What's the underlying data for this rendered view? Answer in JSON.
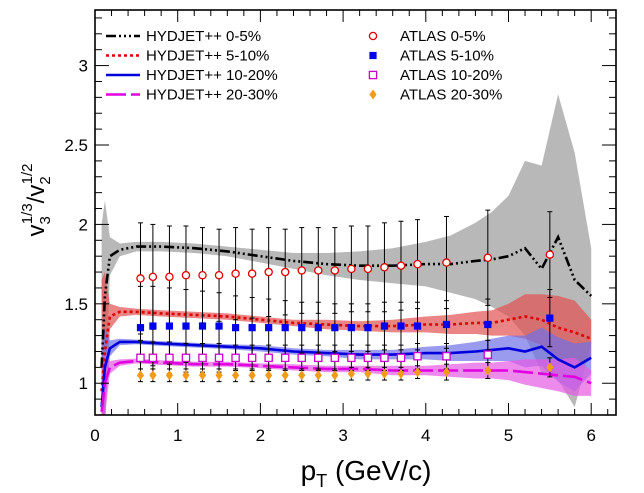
{
  "chart_data": {
    "type": "line",
    "title": "",
    "xlabel": {
      "main": "p",
      "sub": "T",
      "rest": " (GeV/c)"
    },
    "ylabel": {
      "a": "v",
      "a_sub": "3",
      "a_sup": "1/3",
      "slash": "/v",
      "b_sub": "2",
      "b_sup": "1/2"
    },
    "xlim": [
      0,
      6.3
    ],
    "ylim": [
      0.8,
      3.35
    ],
    "x_ticks": [
      "0",
      "1",
      "2",
      "3",
      "4",
      "5",
      "6"
    ],
    "y_ticks": [
      "1",
      "1.5",
      "2",
      "2.5",
      "3"
    ],
    "legend_position": "top",
    "grid": false,
    "model_series": [
      {
        "name": "HYDJET++ 0-5%",
        "color": "#000000",
        "dash": "10 3 2 3 2 3 2 3",
        "band_color": "#9a9a9a",
        "x": [
          0.08,
          0.12,
          0.18,
          0.3,
          0.5,
          0.8,
          1.2,
          1.6,
          2.0,
          2.4,
          2.8,
          3.2,
          3.6,
          4.0,
          4.3,
          4.6,
          4.8,
          5.0,
          5.2,
          5.4,
          5.6,
          5.8,
          6.0
        ],
        "y": [
          1.1,
          1.55,
          1.8,
          1.84,
          1.86,
          1.86,
          1.85,
          1.83,
          1.8,
          1.77,
          1.75,
          1.74,
          1.74,
          1.75,
          1.75,
          1.77,
          1.78,
          1.8,
          1.85,
          1.72,
          1.92,
          1.65,
          1.55
        ],
        "err": [
          0.9,
          0.6,
          0.12,
          0.04,
          0.03,
          0.03,
          0.03,
          0.03,
          0.04,
          0.05,
          0.07,
          0.09,
          0.11,
          0.14,
          0.18,
          0.24,
          0.3,
          0.38,
          0.55,
          0.65,
          0.9,
          0.8,
          0.3
        ]
      },
      {
        "name": "HYDJET++ 5-10%",
        "color": "#e00000",
        "dash": "3 3",
        "band_color": "#e35050",
        "x": [
          0.08,
          0.12,
          0.18,
          0.3,
          0.5,
          0.8,
          1.2,
          1.6,
          2.0,
          2.4,
          2.8,
          3.2,
          3.6,
          4.0,
          4.3,
          4.6,
          4.8,
          5.0,
          5.2,
          5.4,
          5.6,
          5.8,
          6.0
        ],
        "y": [
          0.95,
          1.2,
          1.42,
          1.45,
          1.45,
          1.44,
          1.43,
          1.42,
          1.4,
          1.38,
          1.37,
          1.36,
          1.36,
          1.37,
          1.37,
          1.38,
          1.38,
          1.4,
          1.42,
          1.4,
          1.35,
          1.32,
          1.28
        ],
        "err": [
          0.7,
          0.5,
          0.08,
          0.03,
          0.02,
          0.02,
          0.02,
          0.02,
          0.02,
          0.02,
          0.03,
          0.03,
          0.04,
          0.05,
          0.06,
          0.07,
          0.08,
          0.1,
          0.14,
          0.16,
          0.2,
          0.2,
          0.12
        ]
      },
      {
        "name": "HYDJET++ 10-20%",
        "color": "#0000dd",
        "dash": "",
        "band_color": "#6f6fe8",
        "x": [
          0.08,
          0.12,
          0.18,
          0.3,
          0.5,
          0.8,
          1.2,
          1.6,
          2.0,
          2.4,
          2.8,
          3.2,
          3.6,
          4.0,
          4.3,
          4.6,
          4.8,
          5.0,
          5.2,
          5.4,
          5.6,
          5.8,
          6.0
        ],
        "y": [
          0.85,
          1.1,
          1.22,
          1.26,
          1.26,
          1.25,
          1.24,
          1.23,
          1.22,
          1.2,
          1.19,
          1.18,
          1.18,
          1.19,
          1.19,
          1.2,
          1.21,
          1.22,
          1.2,
          1.23,
          1.15,
          1.1,
          1.16
        ],
        "err": [
          0.4,
          0.25,
          0.05,
          0.02,
          0.015,
          0.015,
          0.015,
          0.015,
          0.02,
          0.02,
          0.02,
          0.03,
          0.03,
          0.04,
          0.05,
          0.06,
          0.07,
          0.08,
          0.1,
          0.12,
          0.14,
          0.15,
          0.1
        ]
      },
      {
        "name": "HYDJET++ 20-30%",
        "color": "#e000e0",
        "dash": "20 5",
        "band_color": "#e55ae5",
        "x": [
          0.08,
          0.12,
          0.18,
          0.3,
          0.5,
          0.8,
          1.2,
          1.6,
          2.0,
          2.4,
          2.8,
          3.2,
          3.6,
          4.0,
          4.3,
          4.6,
          4.8,
          5.0,
          5.2,
          5.4,
          5.6,
          5.8,
          6.0
        ],
        "y": [
          0.82,
          1.0,
          1.1,
          1.13,
          1.14,
          1.13,
          1.12,
          1.12,
          1.11,
          1.1,
          1.09,
          1.09,
          1.08,
          1.08,
          1.08,
          1.08,
          1.08,
          1.08,
          1.07,
          1.06,
          1.05,
          1.04,
          1.0
        ],
        "err": [
          0.3,
          0.2,
          0.04,
          0.02,
          0.015,
          0.015,
          0.015,
          0.015,
          0.015,
          0.02,
          0.02,
          0.02,
          0.03,
          0.03,
          0.04,
          0.05,
          0.05,
          0.06,
          0.08,
          0.09,
          0.1,
          0.12,
          0.08
        ]
      }
    ],
    "data_series": [
      {
        "name": "ATLAS 0-5%",
        "color": "#e00000",
        "marker": "circle-open",
        "x": [
          0.55,
          0.7,
          0.9,
          1.1,
          1.3,
          1.5,
          1.7,
          1.9,
          2.1,
          2.3,
          2.5,
          2.7,
          2.9,
          3.1,
          3.3,
          3.5,
          3.7,
          3.9,
          4.25,
          4.75,
          5.5
        ],
        "y": [
          1.66,
          1.67,
          1.67,
          1.68,
          1.68,
          1.68,
          1.69,
          1.69,
          1.7,
          1.7,
          1.71,
          1.71,
          1.71,
          1.72,
          1.72,
          1.73,
          1.74,
          1.75,
          1.76,
          1.79,
          1.81
        ],
        "err": [
          0.35,
          0.33,
          0.32,
          0.31,
          0.3,
          0.29,
          0.29,
          0.28,
          0.28,
          0.27,
          0.27,
          0.27,
          0.27,
          0.27,
          0.27,
          0.28,
          0.28,
          0.28,
          0.29,
          0.3,
          0.27
        ]
      },
      {
        "name": "ATLAS 5-10%",
        "color": "#0000ee",
        "marker": "square-filled",
        "x": [
          0.55,
          0.7,
          0.9,
          1.1,
          1.3,
          1.5,
          1.7,
          1.9,
          2.1,
          2.3,
          2.5,
          2.7,
          2.9,
          3.1,
          3.3,
          3.5,
          3.7,
          3.9,
          4.25,
          4.75,
          5.5
        ],
        "y": [
          1.35,
          1.36,
          1.36,
          1.36,
          1.36,
          1.36,
          1.35,
          1.35,
          1.35,
          1.35,
          1.35,
          1.35,
          1.35,
          1.35,
          1.35,
          1.36,
          1.36,
          1.36,
          1.37,
          1.37,
          1.41
        ],
        "err": [
          0.26,
          0.25,
          0.24,
          0.23,
          0.22,
          0.21,
          0.2,
          0.19,
          0.18,
          0.17,
          0.16,
          0.16,
          0.15,
          0.15,
          0.15,
          0.15,
          0.15,
          0.15,
          0.15,
          0.16,
          0.18
        ]
      },
      {
        "name": "ATLAS 10-20%",
        "color": "#cc00cc",
        "marker": "square-open",
        "x": [
          0.55,
          0.7,
          0.9,
          1.1,
          1.3,
          1.5,
          1.7,
          1.9,
          2.1,
          2.3,
          2.5,
          2.7,
          2.9,
          3.1,
          3.3,
          3.5,
          3.7,
          3.9,
          4.25,
          4.75
        ],
        "y": [
          1.16,
          1.16,
          1.16,
          1.16,
          1.16,
          1.16,
          1.16,
          1.16,
          1.16,
          1.16,
          1.16,
          1.16,
          1.16,
          1.16,
          1.16,
          1.16,
          1.16,
          1.17,
          1.17,
          1.18
        ],
        "err": [
          0.11,
          0.1,
          0.1,
          0.09,
          0.09,
          0.09,
          0.08,
          0.08,
          0.08,
          0.08,
          0.08,
          0.08,
          0.08,
          0.08,
          0.08,
          0.08,
          0.08,
          0.08,
          0.08,
          0.09
        ]
      },
      {
        "name": "ATLAS 20-30%",
        "color": "#f29a1a",
        "marker": "diamond-filled",
        "x": [
          0.55,
          0.7,
          0.9,
          1.1,
          1.3,
          1.5,
          1.7,
          1.9,
          2.1,
          2.3,
          2.5,
          2.7,
          2.9,
          3.1,
          3.3,
          3.5,
          3.7,
          3.9,
          4.25,
          4.75,
          5.5
        ],
        "y": [
          1.05,
          1.05,
          1.05,
          1.05,
          1.05,
          1.05,
          1.05,
          1.05,
          1.05,
          1.05,
          1.05,
          1.05,
          1.05,
          1.06,
          1.06,
          1.06,
          1.06,
          1.07,
          1.07,
          1.08,
          1.1
        ],
        "err": [
          0.04,
          0.04,
          0.04,
          0.04,
          0.04,
          0.04,
          0.04,
          0.04,
          0.04,
          0.04,
          0.04,
          0.04,
          0.04,
          0.04,
          0.04,
          0.04,
          0.04,
          0.04,
          0.05,
          0.05,
          0.06
        ]
      }
    ]
  }
}
